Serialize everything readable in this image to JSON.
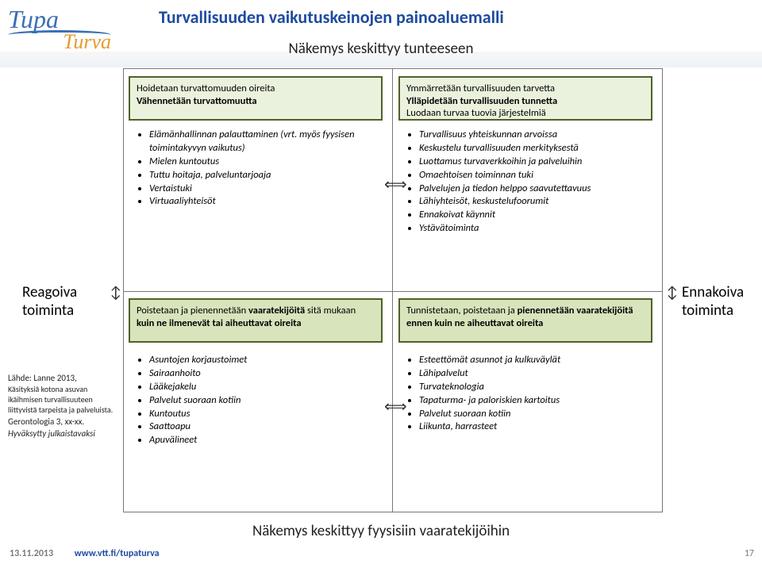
{
  "logo": {
    "line1": "Tupa",
    "line2": "Turva"
  },
  "title": "Turvallisuuden vaikutuskeinojen painoaluemalli",
  "axes": {
    "top": "Näkemys keskittyy tunteeseen",
    "bottom": "Näkemys keskittyy fyysisiin vaaratekijöihin",
    "left": "Reagoiva toiminta",
    "right": "Ennakoiva toiminta"
  },
  "arrows": {
    "horiz": "⟺",
    "vert": "↕"
  },
  "colors": {
    "title": "#1e4ba0",
    "box_light": "#eaf1dd",
    "box_dark": "#d7e4bc",
    "box_border": "#4f6228",
    "frame_border": "#777777",
    "logo_blue": "#3b6fb5",
    "logo_orange": "#e69b2d"
  },
  "quadrants": {
    "top_left": {
      "box_lines": [
        {
          "text": "Hoidetaan turvattomuuden oireita",
          "bold": false
        },
        {
          "text": "Vähennetään turvattomuutta",
          "bold": true
        }
      ],
      "bullets": [
        "Elämänhallinnan palauttaminen (vrt. myös fyysisen toimintakyvyn vaikutus)",
        "Mielen kuntoutus",
        "Tuttu hoitaja, palveluntarjoaja",
        "Vertaistuki",
        "Virtuaaliyhteisöt"
      ]
    },
    "top_right": {
      "box_lines": [
        {
          "text": "Ymmärretään turvallisuuden tarvetta",
          "bold": false
        },
        {
          "text": "Ylläpidetään turvallisuuden tunnetta",
          "bold": true
        },
        {
          "text": "Luodaan turvaa tuovia järjestelmiä",
          "bold": false
        }
      ],
      "bullets": [
        "Turvallisuus yhteiskunnan arvoissa",
        "Keskustelu turvallisuuden merkityksestä",
        "Luottamus turvaverkkoihin ja palveluihin",
        "Omaehtoisen toiminnan tuki",
        "Palvelujen ja tiedon helppo saavutettavuus",
        "Lähiyhteisöt, keskustelufoorumit",
        "Ennakoivat käynnit",
        "Ystävätoiminta"
      ]
    },
    "bottom_left": {
      "box_mixed": {
        "pre": "Poistetaan ja pienennetään ",
        "bold1": "vaaratekijöitä",
        "mid": " sitä mukaan ",
        "bold2": "kuin ne ilmenevät tai aiheuttavat oireita"
      },
      "bullets": [
        "Asuntojen korjaustoimet",
        "Sairaanhoito",
        "Lääkejakelu",
        "Palvelut suoraan kotiin",
        "Kuntoutus",
        "Saattoapu",
        "Apuvälineet"
      ]
    },
    "bottom_right": {
      "box_mixed": {
        "pre": "Tunnistetaan, poistetaan ja ",
        "bold1": "pienennetään vaaratekijöitä ennen kuin ne aiheuttavat oireita"
      },
      "bullets": [
        "Esteettömät asunnot ja kulkuväylät",
        "Lähipalvelut",
        "Turvateknologia",
        "Tapaturma- ja paloriskien kartoitus",
        "Palvelut suoraan kotiin",
        "Liikunta, harrasteet"
      ]
    }
  },
  "source": {
    "line1": "Lähde: Lanne 2013,",
    "line2": "Käsityksiä kotona asuvan ikäihmisen turvallisuuteen liittyvistä tarpeista ja palveluista.",
    "line3": "Gerontologia 3, xx-xx.",
    "line4": "Hyväksytty julkaistavaksi"
  },
  "footer": {
    "date": "13.11.2013",
    "url": "www.vtt.fi/tupaturva",
    "page": "17"
  }
}
